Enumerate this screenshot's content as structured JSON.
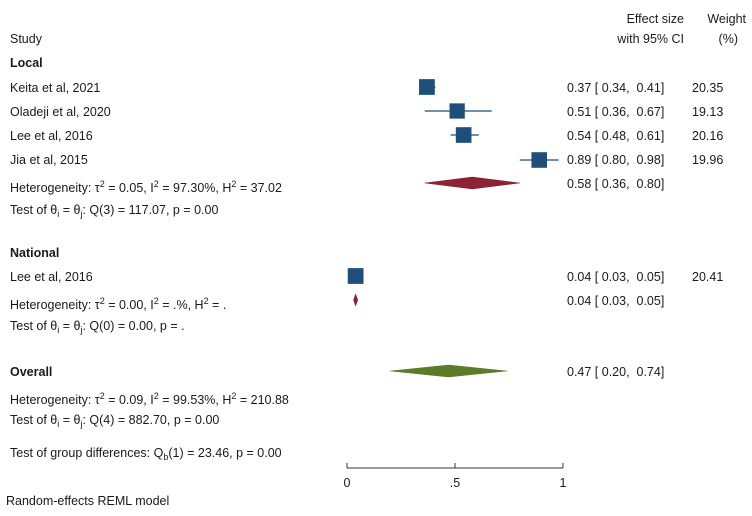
{
  "header": {
    "study_label": "Study",
    "effect_label_1": "Effect size",
    "effect_label_2": "with 95% CI",
    "weight_label_1": "Weight",
    "weight_label_2": "(%)"
  },
  "groups": {
    "local": {
      "name": "Local",
      "studies": [
        {
          "label": "Keita et al, 2021",
          "effect_text": "0.37 [ 0.34,  0.41]",
          "weight": "20.35"
        },
        {
          "label": "Oladeji et al, 2020",
          "effect_text": "0.51 [ 0.36,  0.67]",
          "weight": "19.13"
        },
        {
          "label": "Lee et al, 2016",
          "effect_text": "0.54 [ 0.48,  0.61]",
          "weight": "20.16"
        },
        {
          "label": "Jia et al, 2015",
          "effect_text": "0.89 [ 0.80,  0.98]",
          "weight": "19.96"
        }
      ],
      "het_prefix": "Heterogeneity: τ",
      "het_tau": " = 0.05, I",
      "het_i": " = 97.30%, H",
      "het_h": " = 37.02",
      "summary_text": "0.58 [ 0.36,  0.80]",
      "test_prefix": "Test of θ",
      "test_mid": " = θ",
      "test_suffix": ": Q(3) = 117.07, p = 0.00"
    },
    "national": {
      "name": "National",
      "studies": [
        {
          "label": "Lee et al, 2016",
          "effect_text": "0.04 [ 0.03,  0.05]",
          "weight": "20.41"
        }
      ],
      "het_prefix": "Heterogeneity: τ",
      "het_tau": " = 0.00, I",
      "het_i": " = .%, H",
      "het_h": " = .",
      "summary_text": "0.04 [ 0.03,  0.05]",
      "test_prefix": "Test of θ",
      "test_mid": " = θ",
      "test_suffix": ": Q(0) = 0.00, p = ."
    },
    "overall": {
      "name": "Overall",
      "summary_text": "0.47 [ 0.20,  0.74]",
      "het_prefix": "Heterogeneity: τ",
      "het_tau": " = 0.09, I",
      "het_i": " = 99.53%, H",
      "het_h": " = 210.88",
      "test_prefix": "Test of θ",
      "test_mid": " = θ",
      "test_suffix": ": Q(4) = 882.70, p = 0.00"
    }
  },
  "group_diff": {
    "prefix": "Test of group differences: Q",
    "suffix": "(1) = 23.46, p = 0.00"
  },
  "footer_note": "Random-effects REML model",
  "sup_two": "2",
  "sub_i": "i",
  "sub_j": "j",
  "sub_b": "b",
  "chart_data": {
    "type": "forest",
    "xlim": [
      0,
      1
    ],
    "ticks": [
      0,
      0.5,
      1
    ],
    "tick_labels": [
      "0",
      ".5",
      "1"
    ],
    "colors": {
      "square": "#1f4e79",
      "ci": "#1f4e79",
      "local_diamond": "#8b2332",
      "national_diamond": "#8b2332",
      "overall_diamond": "#5b7a2a"
    },
    "studies": [
      {
        "group": "Local",
        "label": "Keita et al, 2021",
        "es": 0.37,
        "lo": 0.34,
        "hi": 0.41,
        "weight": 20.35
      },
      {
        "group": "Local",
        "label": "Oladeji et al, 2020",
        "es": 0.51,
        "lo": 0.36,
        "hi": 0.67,
        "weight": 19.13
      },
      {
        "group": "Local",
        "label": "Lee et al, 2016",
        "es": 0.54,
        "lo": 0.48,
        "hi": 0.61,
        "weight": 20.16
      },
      {
        "group": "Local",
        "label": "Jia et al, 2015",
        "es": 0.89,
        "lo": 0.8,
        "hi": 0.98,
        "weight": 19.96
      },
      {
        "group": "National",
        "label": "Lee et al, 2016",
        "es": 0.04,
        "lo": 0.03,
        "hi": 0.05,
        "weight": 20.41
      }
    ],
    "summaries": [
      {
        "name": "local",
        "es": 0.58,
        "lo": 0.36,
        "hi": 0.8
      },
      {
        "name": "national",
        "es": 0.04,
        "lo": 0.03,
        "hi": 0.05
      },
      {
        "name": "overall",
        "es": 0.47,
        "lo": 0.2,
        "hi": 0.74
      }
    ]
  }
}
